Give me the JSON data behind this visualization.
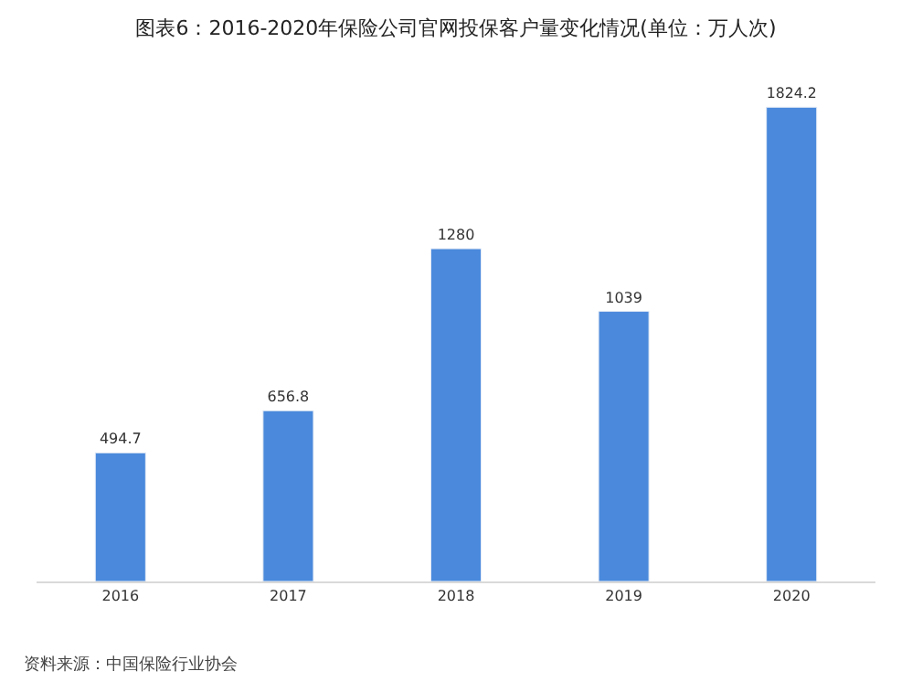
{
  "chart_data": {
    "type": "bar",
    "title": "图表6：2016-2020年保险公司官网投保客户量变化情况(单位：万人次)",
    "categories": [
      "2016",
      "2017",
      "2018",
      "2019",
      "2020"
    ],
    "values": [
      494.7,
      656.8,
      1280,
      1039,
      1824.2
    ],
    "color": "#4a89dc",
    "data_labels": true,
    "annotations": [
      "资料来源：中国保险行业协会"
    ]
  }
}
